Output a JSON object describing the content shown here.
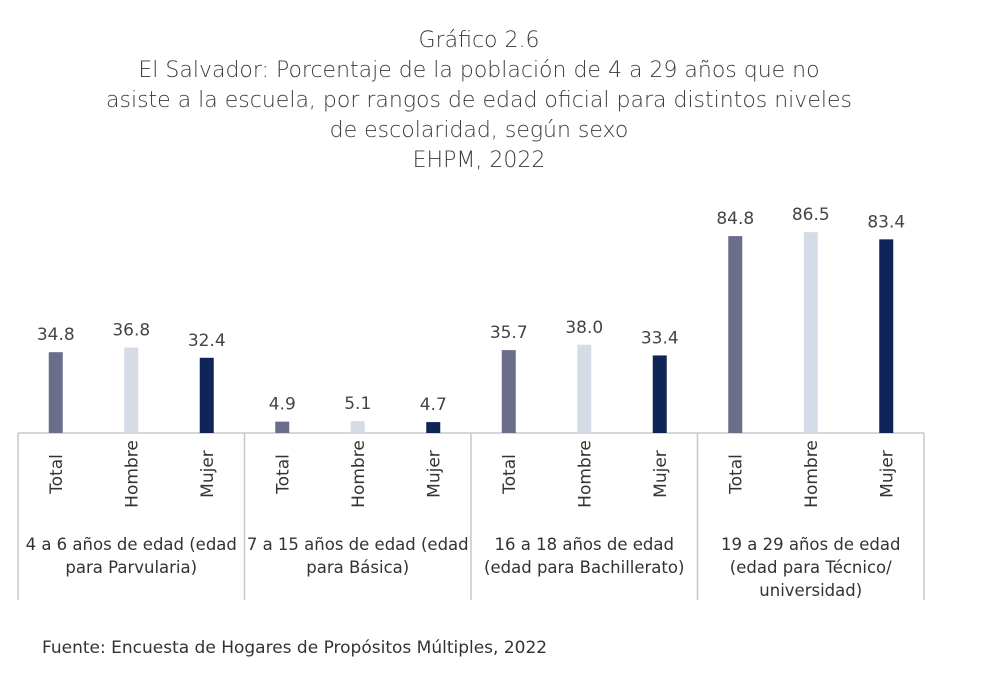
{
  "top_line_text": "",
  "title": {
    "line1": "Gráfico 2.6",
    "line2": "El Salvador: Porcentaje de la población de 4 a 29 años que no",
    "line3": "asiste a la escuela, por rangos de edad oficial para distintos niveles",
    "line4": "de escolaridad, según sexo",
    "line5": "EHPM, 2022"
  },
  "source": "Fuente: Encuesta de Hogares de Propósitos Múltiples, 2022",
  "colors": {
    "Total": "#6b6e8b",
    "Hombre": "#d5dce8",
    "Mujer": "#0f2557",
    "axis": "#c8c8c8"
  },
  "chart_data": {
    "type": "bar",
    "subcategories": [
      "Total",
      "Hombre",
      "Mujer"
    ],
    "groups": [
      {
        "label_lines": [
          "4 a 6 años de edad (edad",
          "para Parvularia)"
        ],
        "values": [
          34.8,
          36.8,
          32.4
        ]
      },
      {
        "label_lines": [
          "7 a 15 años de edad (edad",
          "para Básica)"
        ],
        "values": [
          4.9,
          5.1,
          4.7
        ]
      },
      {
        "label_lines": [
          "16 a 18 años de edad",
          "(edad para Bachillerato)"
        ],
        "values": [
          35.7,
          38.0,
          33.4
        ]
      },
      {
        "label_lines": [
          "19  a 29 años de edad",
          "(edad para Técnico/",
          "universidad)"
        ],
        "values": [
          84.8,
          86.5,
          83.4
        ]
      }
    ],
    "value_labels": [
      [
        "34.8",
        "36.8",
        "32.4"
      ],
      [
        "4.9",
        "5.1",
        "4.7"
      ],
      [
        "35.7",
        "38.0",
        "33.4"
      ],
      [
        "84.8",
        "86.5",
        "83.4"
      ]
    ],
    "ylim": [
      0,
      100
    ],
    "grid": false
  }
}
